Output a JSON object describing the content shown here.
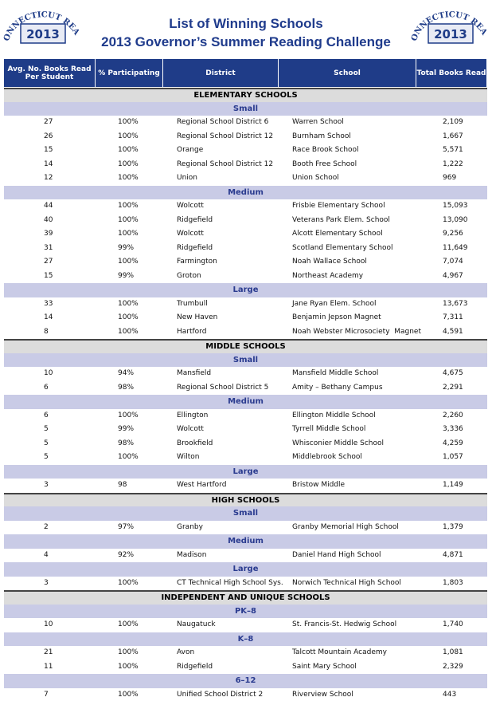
{
  "header": {
    "title": "List of Winning Schools",
    "subtitle": "2013 Governor’s Summer Reading Challenge",
    "logo": {
      "text": "CONNECTICUT READS",
      "year": "2013"
    }
  },
  "table": {
    "columns": [
      "Avg. No. Books Read Per Student",
      "% Participating",
      "District",
      "School",
      "Total Books Read"
    ],
    "sections": [
      {
        "title": "ELEMENTARY SCHOOLS",
        "groups": [
          {
            "title": "Small",
            "rows": [
              [
                "27",
                "100%",
                "Regional School District 6",
                "Warren School",
                "2,109"
              ],
              [
                "26",
                "100%",
                "Regional School District 12",
                "Burnham School",
                "1,667"
              ],
              [
                "15",
                "100%",
                "Orange",
                "Race Brook School",
                "5,571"
              ],
              [
                "14",
                "100%",
                "Regional School District 12",
                "Booth Free School",
                "1,222"
              ],
              [
                "12",
                "100%",
                "Union",
                "Union School",
                "969"
              ]
            ]
          },
          {
            "title": "Medium",
            "rows": [
              [
                "44",
                "100%",
                "Wolcott",
                "Frisbie Elementary School",
                "15,093"
              ],
              [
                "40",
                "100%",
                "Ridgefield",
                "Veterans Park Elem. School",
                "13,090"
              ],
              [
                "39",
                "100%",
                "Wolcott",
                "Alcott Elementary School",
                "9,256"
              ],
              [
                "31",
                "99%",
                "Ridgefield",
                "Scotland Elementary School",
                "11,649"
              ],
              [
                "27",
                "100%",
                "Farmington",
                "Noah Wallace School",
                "7,074"
              ],
              [
                "15",
                "99%",
                "Groton",
                "Northeast Academy",
                "4,967"
              ]
            ]
          },
          {
            "title": "Large",
            "rows": [
              [
                "33",
                "100%",
                "Trumbull",
                "Jane Ryan Elem. School",
                "13,673"
              ],
              [
                "14",
                "100%",
                "New Haven",
                "Benjamin Jepson Magnet",
                "7,311"
              ],
              [
                "8",
                "100%",
                "Hartford",
                "Noah Webster Microsociety  Magnet",
                "4,591"
              ]
            ]
          }
        ]
      },
      {
        "title": "MIDDLE SCHOOLS",
        "groups": [
          {
            "title": "Small",
            "rows": [
              [
                "10",
                "94%",
                "Mansfield",
                "Mansfield Middle School",
                "4,675"
              ],
              [
                "6",
                "98%",
                "Regional School District 5",
                "Amity – Bethany Campus",
                "2,291"
              ]
            ]
          },
          {
            "title": "Medium",
            "rows": [
              [
                "6",
                "100%",
                "Ellington",
                "Ellington Middle School",
                "2,260"
              ],
              [
                "5",
                "99%",
                "Wolcott",
                "Tyrrell Middle School",
                "3,336"
              ],
              [
                "5",
                "98%",
                "Brookfield",
                "Whisconier Middle School",
                "4,259"
              ],
              [
                "5",
                "100%",
                "Wilton",
                "Middlebrook School",
                "1,057"
              ]
            ]
          },
          {
            "title": "Large",
            "rows": [
              [
                "3",
                "98",
                "West Hartford",
                "Bristow Middle",
                "1,149"
              ]
            ]
          }
        ]
      },
      {
        "title": "HIGH SCHOOLS",
        "groups": [
          {
            "title": "Small",
            "rows": [
              [
                "2",
                "97%",
                "Granby",
                "Granby Memorial High School",
                "1,379"
              ]
            ]
          },
          {
            "title": "Medium",
            "rows": [
              [
                "4",
                "92%",
                "Madison",
                "Daniel Hand High School",
                "4,871"
              ]
            ]
          },
          {
            "title": "Large",
            "rows": [
              [
                "3",
                "100%",
                "CT Technical High School Sys.",
                "Norwich Technical High School",
                "1,803"
              ]
            ]
          }
        ]
      },
      {
        "title": "INDEPENDENT AND UNIQUE SCHOOLS",
        "groups": [
          {
            "title": "PK–8",
            "rows": [
              [
                "10",
                "100%",
                "Naugatuck",
                "St. Francis-St. Hedwig School",
                "1,740"
              ]
            ]
          },
          {
            "title": "K–8",
            "rows": [
              [
                "21",
                "100%",
                "Avon",
                "Talcott Mountain Academy",
                "1,081"
              ],
              [
                "11",
                "100%",
                "Ridgefield",
                "Saint Mary School",
                "2,329"
              ]
            ]
          },
          {
            "title": "6–12",
            "rows": [
              [
                "7",
                "100%",
                "Unified School District 2",
                "Riverview School",
                "443"
              ]
            ]
          }
        ]
      }
    ]
  }
}
